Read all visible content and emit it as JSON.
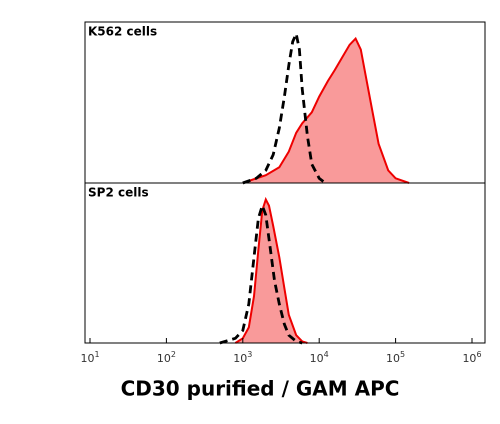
{
  "chart_data": [
    {
      "type": "area",
      "title": "K562 cells",
      "log_x": true,
      "xlim": [
        8.6,
        1480000
      ],
      "ylim": [
        0,
        100
      ],
      "series": [
        {
          "color": "#ee0000",
          "fill": "#f99a9a",
          "dashed": false,
          "x": [
            1000,
            2000,
            3000,
            4000,
            5000,
            6000,
            8000,
            10000,
            13000,
            16000,
            20000,
            25000,
            30000,
            35000,
            40000,
            50000,
            60000,
            80000,
            100000,
            150000
          ],
          "values": [
            0,
            5,
            10,
            20,
            32,
            38,
            45,
            55,
            65,
            72,
            80,
            88,
            92,
            85,
            70,
            45,
            25,
            8,
            3,
            0
          ]
        },
        {
          "color": "#000000",
          "fill": null,
          "dashed": true,
          "x": [
            1000,
            1500,
            2000,
            2500,
            3000,
            3500,
            4000,
            4500,
            5000,
            5500,
            6000,
            7000,
            8000,
            10000,
            12000
          ],
          "values": [
            0,
            3,
            8,
            18,
            35,
            55,
            75,
            90,
            95,
            85,
            60,
            30,
            12,
            3,
            0
          ]
        }
      ]
    },
    {
      "type": "area",
      "title": "SP2 cells",
      "log_x": true,
      "xlim": [
        8.6,
        1480000
      ],
      "ylim": [
        0,
        100
      ],
      "xlabel": "CD30 purified / GAM APC",
      "xticks": [
        {
          "value": 10,
          "label": "10",
          "exponent": "1"
        },
        {
          "value": 100,
          "label": "10",
          "exponent": "2"
        },
        {
          "value": 1000,
          "label": "10",
          "exponent": "3"
        },
        {
          "value": 10000,
          "label": "10",
          "exponent": "4"
        },
        {
          "value": 100000,
          "label": "10",
          "exponent": "5"
        },
        {
          "value": 1000000,
          "label": "10",
          "exponent": "6"
        }
      ],
      "series": [
        {
          "color": "#ee0000",
          "fill": "#f99a9a",
          "dashed": false,
          "x": [
            800,
            1000,
            1200,
            1400,
            1600,
            1800,
            2000,
            2200,
            2500,
            3000,
            3500,
            4000,
            5000,
            6000,
            7000
          ],
          "values": [
            0,
            3,
            10,
            30,
            60,
            85,
            92,
            88,
            75,
            55,
            35,
            18,
            5,
            1,
            0
          ]
        },
        {
          "color": "#000000",
          "fill": null,
          "dashed": true,
          "x": [
            500,
            800,
            1000,
            1200,
            1400,
            1600,
            1800,
            2000,
            2300,
            2600,
            3000,
            3500,
            4000,
            5000,
            6000
          ],
          "values": [
            0,
            3,
            8,
            25,
            55,
            80,
            88,
            82,
            60,
            40,
            25,
            12,
            5,
            1,
            0
          ]
        }
      ]
    }
  ]
}
